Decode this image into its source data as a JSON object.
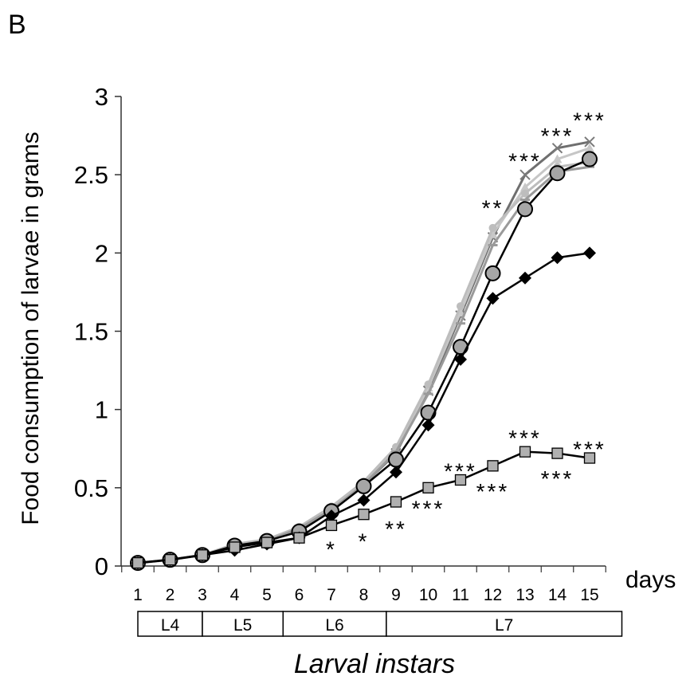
{
  "chart_data": {
    "type": "line",
    "panel_label": "B",
    "title": "",
    "ylabel": "Food consumption of larvae in grams",
    "xlabel": "Larval instars",
    "x_unit_label": "days",
    "ylim": [
      0,
      3
    ],
    "y_ticks": [
      "0",
      "0.5",
      "1",
      "1.5",
      "2",
      "2.5",
      "3"
    ],
    "x": [
      1,
      2,
      3,
      4,
      5,
      6,
      7,
      8,
      9,
      10,
      11,
      12,
      13,
      14,
      15
    ],
    "x_tick_labels": [
      "1",
      "2",
      "3",
      "4",
      "5",
      "6",
      "7",
      "8",
      "9",
      "10",
      "11",
      "12",
      "13",
      "14",
      "15"
    ],
    "instars": [
      {
        "label": "L4",
        "from": 1,
        "to": 3
      },
      {
        "label": "L5",
        "from": 3,
        "to": 5.5
      },
      {
        "label": "L6",
        "from": 5.5,
        "to": 8.7
      },
      {
        "label": "L7",
        "from": 8.7,
        "to": 16
      }
    ],
    "series": [
      {
        "marker": "x",
        "color": "#7a7a7a",
        "values": [
          0.02,
          0.04,
          0.07,
          0.13,
          0.16,
          0.23,
          0.36,
          0.52,
          0.72,
          1.12,
          1.6,
          2.1,
          2.5,
          2.67,
          2.71
        ]
      },
      {
        "marker": "triangle",
        "color": "#c8c8c8",
        "values": [
          0.02,
          0.04,
          0.07,
          0.13,
          0.16,
          0.24,
          0.37,
          0.53,
          0.74,
          1.14,
          1.62,
          2.12,
          2.42,
          2.6,
          2.67
        ]
      },
      {
        "marker": "dot",
        "color": "#bdbdbd",
        "values": [
          0.02,
          0.04,
          0.07,
          0.14,
          0.17,
          0.25,
          0.38,
          0.54,
          0.76,
          1.16,
          1.66,
          2.16,
          2.38,
          2.55,
          2.58
        ]
      },
      {
        "marker": "dash",
        "color": "#9a9a9a",
        "values": [
          0.02,
          0.04,
          0.07,
          0.13,
          0.16,
          0.24,
          0.36,
          0.52,
          0.73,
          1.1,
          1.55,
          2.05,
          2.34,
          2.52,
          2.55
        ]
      },
      {
        "marker": "circle",
        "color": "#999999",
        "values": [
          0.02,
          0.04,
          0.07,
          0.13,
          0.16,
          0.22,
          0.35,
          0.51,
          0.68,
          0.98,
          1.4,
          1.87,
          2.28,
          2.51,
          2.6
        ]
      },
      {
        "marker": "diamond",
        "color": "#000000",
        "values": [
          0.02,
          0.04,
          0.07,
          0.1,
          0.14,
          0.18,
          0.32,
          0.42,
          0.6,
          0.9,
          1.32,
          1.71,
          1.84,
          1.97,
          2.0
        ]
      },
      {
        "marker": "square",
        "color": "#aaaaaa",
        "values": [
          0.02,
          0.04,
          0.07,
          0.12,
          0.15,
          0.18,
          0.26,
          0.33,
          0.41,
          0.5,
          0.55,
          0.64,
          0.73,
          0.72,
          0.69
        ]
      }
    ],
    "annotations": [
      {
        "text": "*",
        "x": 7,
        "y": 0.12
      },
      {
        "text": "*",
        "x": 8,
        "y": 0.17
      },
      {
        "text": "**",
        "x": 9,
        "y": 0.25
      },
      {
        "text": "***",
        "x": 10,
        "y": 0.38
      },
      {
        "text": "***",
        "x": 11,
        "y": 0.62
      },
      {
        "text": "***",
        "x": 12,
        "y": 0.49
      },
      {
        "text": "***",
        "x": 13,
        "y": 0.83
      },
      {
        "text": "***",
        "x": 14,
        "y": 0.57
      },
      {
        "text": "***",
        "x": 15,
        "y": 0.76
      },
      {
        "text": "**",
        "x": 12,
        "y": 2.3
      },
      {
        "text": "***",
        "x": 13,
        "y": 2.6
      },
      {
        "text": "***",
        "x": 14,
        "y": 2.76
      },
      {
        "text": "***",
        "x": 15,
        "y": 2.86
      }
    ]
  }
}
